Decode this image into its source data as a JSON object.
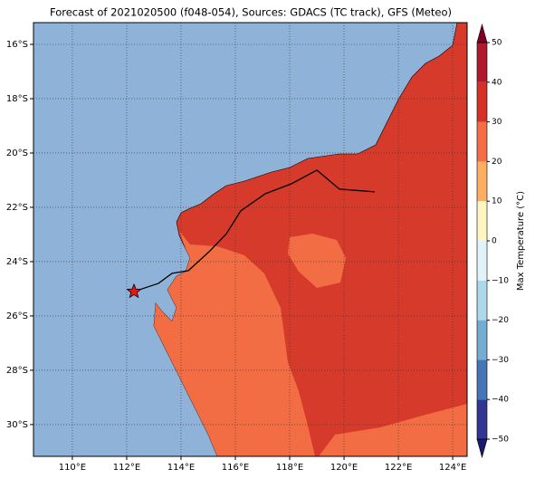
{
  "chart_data": {
    "type": "map",
    "title": "Forecast of 2021020500 (f048-054), Sources: GDACS (TC track), GFS (Meteo)",
    "xlim": [
      108.57,
      124.53
    ],
    "ylim": [
      -31.17,
      -15.2
    ],
    "xticks": [
      {
        "value": 110,
        "label": "110°E"
      },
      {
        "value": 112,
        "label": "112°E"
      },
      {
        "value": 114,
        "label": "114°E"
      },
      {
        "value": 116,
        "label": "116°E"
      },
      {
        "value": 118,
        "label": "118°E"
      },
      {
        "value": 120,
        "label": "120°E"
      },
      {
        "value": 122,
        "label": "122°E"
      },
      {
        "value": 124,
        "label": "124°E"
      }
    ],
    "yticks": [
      {
        "value": -16,
        "label": "16°S"
      },
      {
        "value": -18,
        "label": "18°S"
      },
      {
        "value": -20,
        "label": "20°S"
      },
      {
        "value": -22,
        "label": "22°S"
      },
      {
        "value": -24,
        "label": "24°S"
      },
      {
        "value": -26,
        "label": "26°S"
      },
      {
        "value": -28,
        "label": "28°S"
      },
      {
        "value": -30,
        "label": "30°S"
      }
    ],
    "grid": true,
    "track": {
      "color": "#000000",
      "x": [
        112.27,
        113.17,
        113.67,
        114.27,
        114.6,
        115.07,
        115.67,
        116.2,
        117.1,
        118.07,
        119.0,
        119.83,
        121.13
      ],
      "values": [
        -25.1,
        -24.8,
        -24.43,
        -24.33,
        -24.03,
        -23.6,
        -22.97,
        -22.13,
        -21.5,
        -21.13,
        -20.63,
        -21.33,
        -21.43
      ]
    },
    "position": {
      "x": 112.27,
      "y": -25.1,
      "color": "#e8141a"
    },
    "colorbar": {
      "label": "Max Temperature (°C)",
      "ylim": [
        -50,
        50
      ],
      "levels": [
        -50,
        -40,
        -30,
        -20,
        -10,
        0,
        10,
        20,
        30,
        40,
        50
      ],
      "colors": [
        "#313695",
        "#4575b4",
        "#74add1",
        "#abd9e9",
        "#e0f3f8",
        "#fff5c0",
        "#fdae61",
        "#f46d43",
        "#d73027",
        "#b2182b"
      ],
      "under_color": "#1a1a6e",
      "over_color": "#7f0026",
      "ticks": [
        50,
        40,
        30,
        20,
        10,
        0,
        {
          "value": -10,
          "label": "−10"
        },
        {
          "value": -20,
          "label": "−20"
        },
        {
          "value": -30,
          "label": "−30"
        },
        {
          "value": -40,
          "label": "−40"
        },
        {
          "value": -50,
          "label": "−50"
        }
      ]
    }
  }
}
